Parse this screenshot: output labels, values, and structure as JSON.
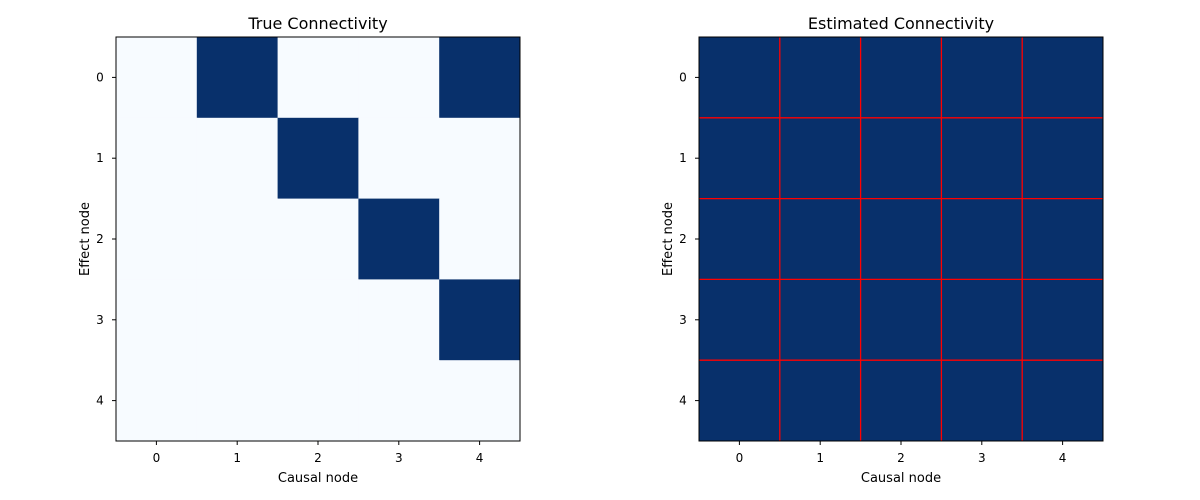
{
  "chart_data": [
    {
      "type": "heatmap",
      "title": "True Connectivity",
      "xlabel": "Causal node",
      "ylabel": "Effect node",
      "x_ticks": [
        "0",
        "1",
        "2",
        "3",
        "4"
      ],
      "y_ticks": [
        "0",
        "1",
        "2",
        "3",
        "4"
      ],
      "values": [
        [
          0,
          1,
          0,
          0,
          1
        ],
        [
          0,
          0,
          1,
          0,
          0
        ],
        [
          0,
          0,
          0,
          1,
          0
        ],
        [
          0,
          0,
          0,
          0,
          1
        ],
        [
          0,
          0,
          0,
          0,
          0
        ]
      ],
      "colormap": {
        "low": "#f7fbff",
        "high": "#08306b"
      },
      "grid": false
    },
    {
      "type": "heatmap",
      "title": "Estimated Connectivity",
      "xlabel": "Causal node",
      "ylabel": "Effect node",
      "x_ticks": [
        "0",
        "1",
        "2",
        "3",
        "4"
      ],
      "y_ticks": [
        "0",
        "1",
        "2",
        "3",
        "4"
      ],
      "values": [
        [
          1,
          1,
          1,
          1,
          1
        ],
        [
          1,
          1,
          1,
          1,
          1
        ],
        [
          1,
          1,
          1,
          1,
          1
        ],
        [
          1,
          1,
          1,
          1,
          1
        ],
        [
          1,
          1,
          1,
          1,
          1
        ]
      ],
      "colormap": {
        "low": "#f7fbff",
        "high": "#08306b"
      },
      "grid": true,
      "grid_color": "#ff0000"
    }
  ]
}
